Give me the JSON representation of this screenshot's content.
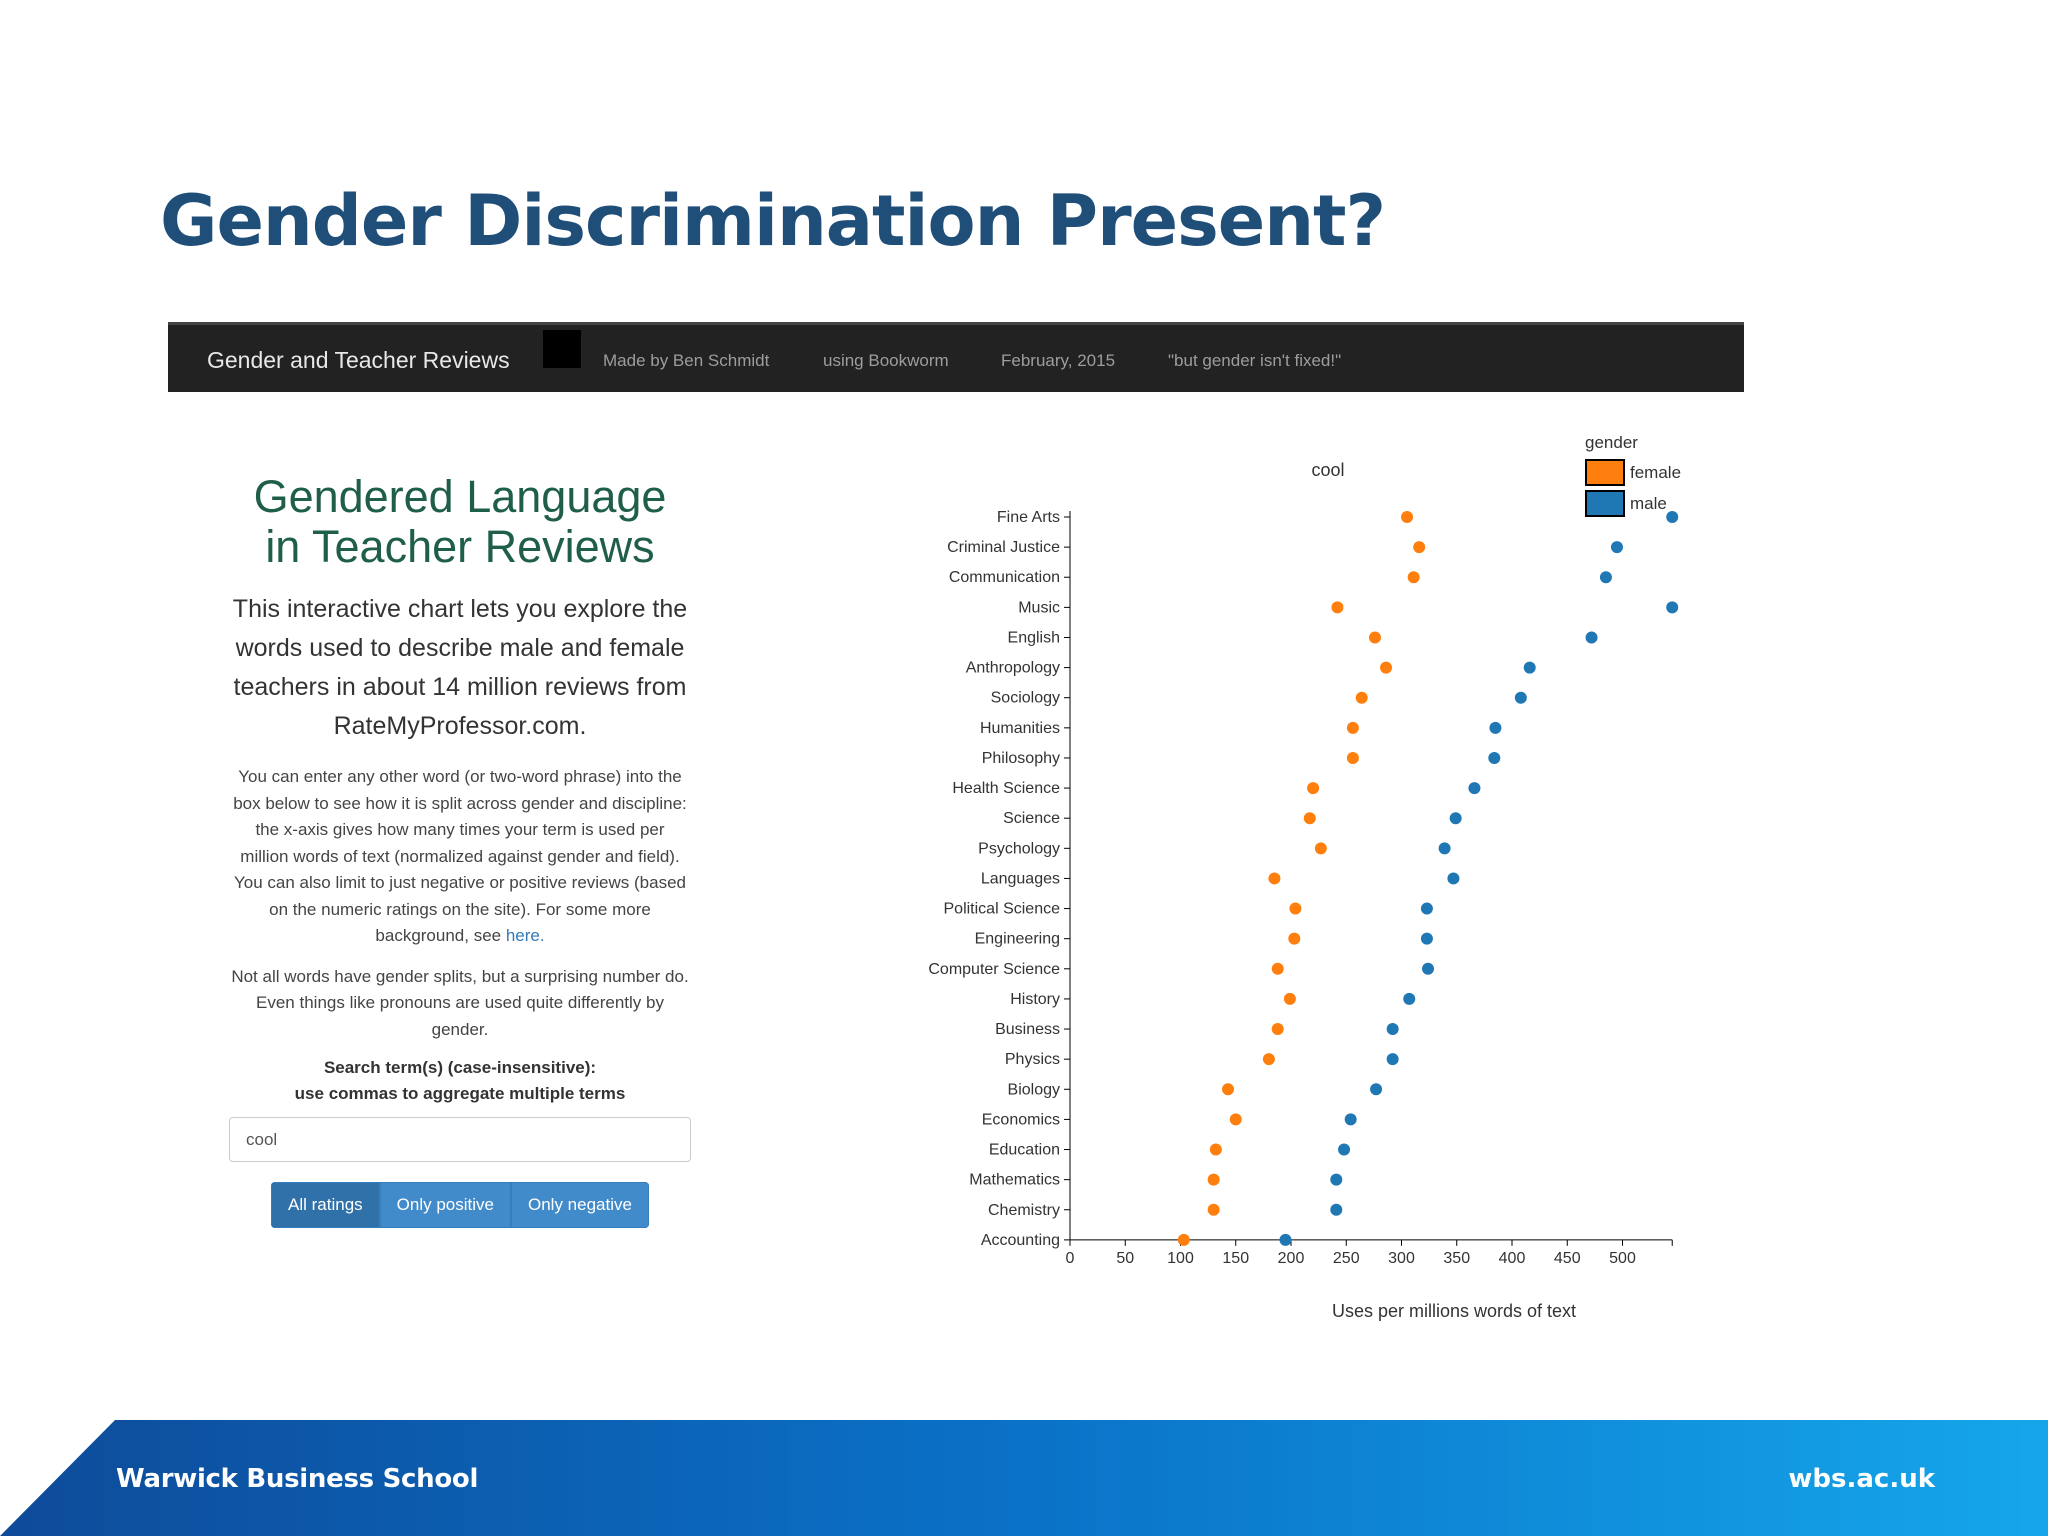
{
  "slide": {
    "title": "Gender Discrimination Present?",
    "footer_left": "Warwick Business School",
    "footer_right": "wbs.ac.uk"
  },
  "navbar": {
    "brand": "Gender and Teacher Reviews",
    "links": [
      "Made by Ben Schmidt",
      "using Bookworm",
      "February, 2015",
      "\"but gender isn't fixed!\""
    ]
  },
  "sidebar": {
    "title_line1": "Gendered Language",
    "title_line2": "in Teacher Reviews",
    "intro": "This interactive chart lets you explore the words used to describe male and female teachers in about 14 million reviews from RateMyProfessor.com.",
    "para1": "You can enter any other word (or two-word phrase) into the box below to see how it is split across gender and discipline: the x-axis gives how many times your term is used per million words of text (normalized against gender and field). You can also limit to just negative or positive reviews (based on the numeric ratings on the site). For some more background, see",
    "para1_link": "here.",
    "para2": "Not all words have gender splits, but a surprising number do. Even things like pronouns are used quite differently by gender.",
    "search_label_line1": "Search term(s) (case-insensitive):",
    "search_label_line2": "use commas to aggregate multiple terms",
    "search_value": "cool",
    "buttons": [
      "All ratings",
      "Only positive",
      "Only negative"
    ],
    "active_button": 0
  },
  "colors": {
    "female": "#ff7f0e",
    "male": "#1f77b4",
    "navbar": "#222222",
    "title": "#1f4e79"
  },
  "chart_data": {
    "type": "scatter",
    "title": "cool",
    "xlabel": "Uses per millions words of text",
    "ylabel": "",
    "xlim": [
      0,
      545
    ],
    "xticks": [
      0,
      50,
      100,
      150,
      200,
      250,
      300,
      350,
      400,
      450,
      500
    ],
    "legend": {
      "title": "gender",
      "position": "top-right"
    },
    "grid": false,
    "categories": [
      "Fine Arts",
      "Criminal Justice",
      "Communication",
      "Music",
      "English",
      "Anthropology",
      "Sociology",
      "Humanities",
      "Philosophy",
      "Health Science",
      "Science",
      "Psychology",
      "Languages",
      "Political Science",
      "Engineering",
      "Computer Science",
      "History",
      "Business",
      "Physics",
      "Biology",
      "Economics",
      "Education",
      "Mathematics",
      "Chemistry",
      "Accounting"
    ],
    "series": [
      {
        "name": "female",
        "values": [
          305,
          316,
          311,
          242,
          276,
          286,
          264,
          256,
          256,
          220,
          217,
          227,
          185,
          204,
          203,
          188,
          199,
          188,
          180,
          143,
          150,
          132,
          130,
          130,
          103
        ]
      },
      {
        "name": "male",
        "values": [
          545,
          495,
          485,
          545,
          472,
          416,
          408,
          385,
          384,
          366,
          349,
          339,
          347,
          323,
          323,
          324,
          307,
          292,
          292,
          277,
          254,
          248,
          241,
          241,
          195
        ]
      }
    ]
  }
}
